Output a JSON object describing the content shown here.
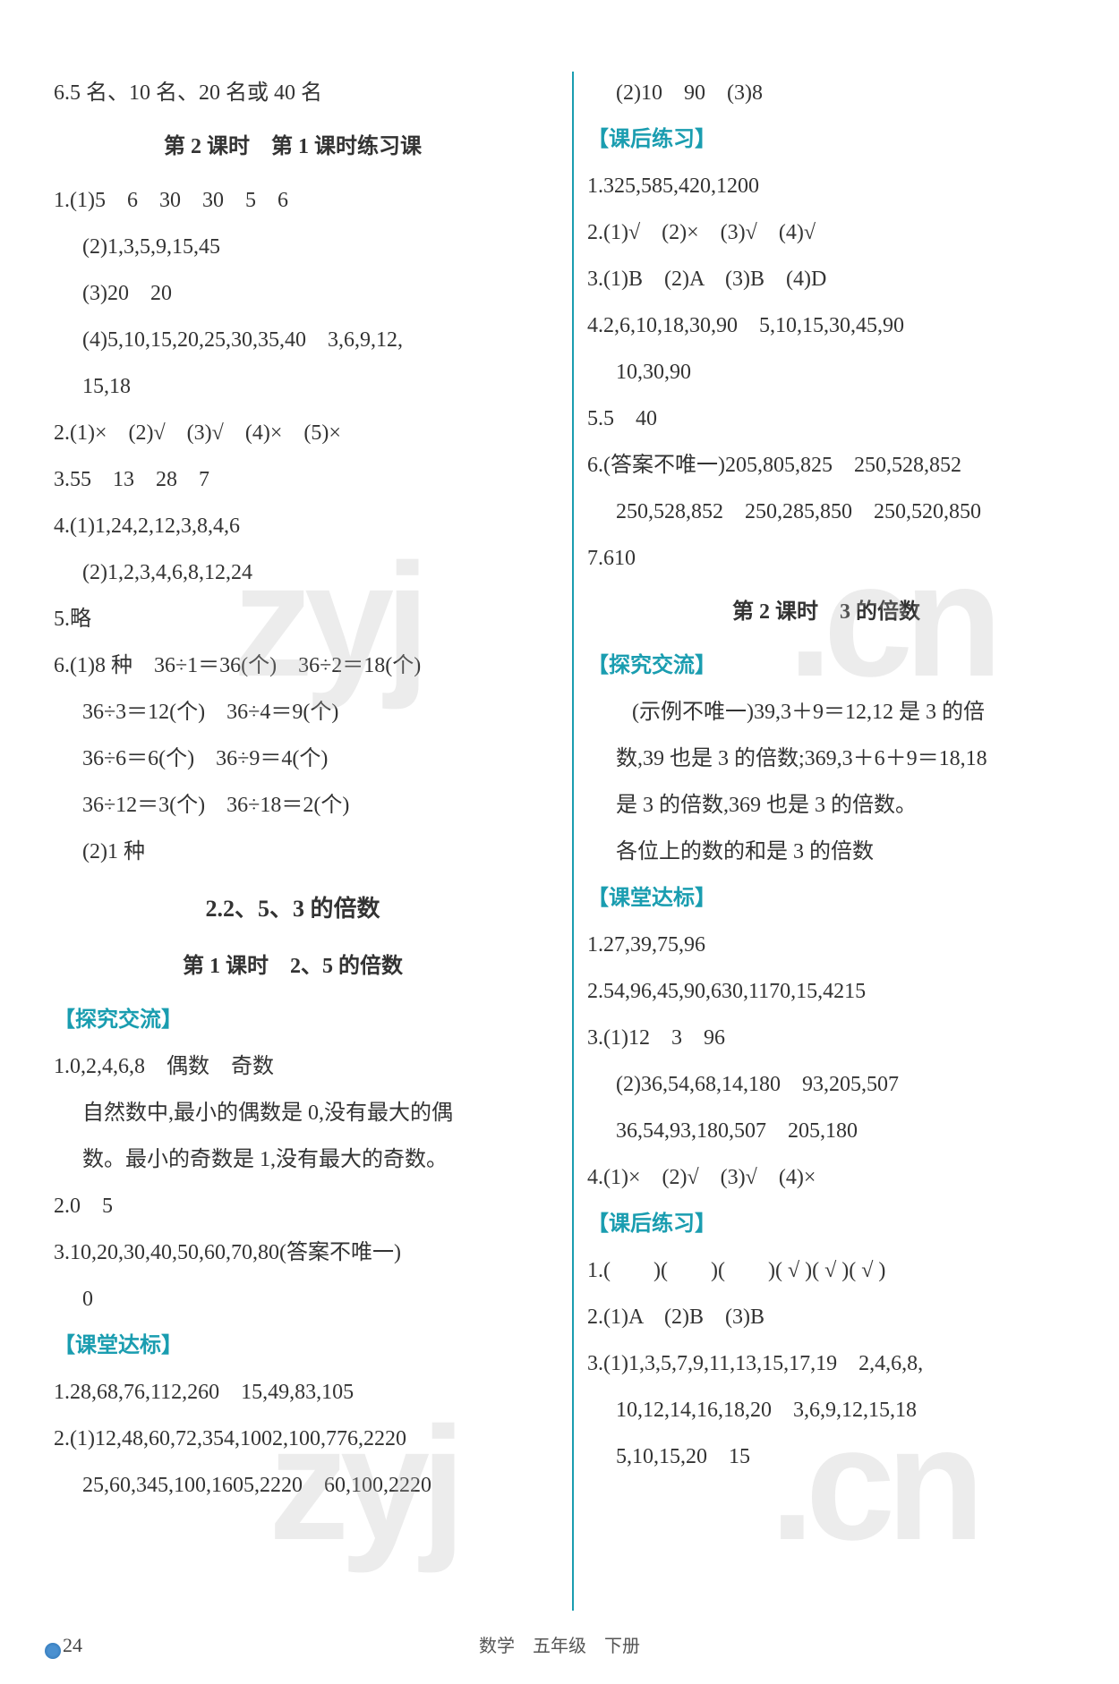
{
  "page": {
    "footer": "数学　五年级　下册",
    "page_number": "24",
    "background_color": "#ffffff",
    "text_color": "#333333",
    "accent_color": "#1a9db0",
    "body_fontsize": 24,
    "line_height": 2.0,
    "watermark_color": "rgba(180,180,180,0.25)",
    "watermark_text_1": "zyj",
    "watermark_text_2": ".cn",
    "watermark_text_3": "zyj",
    "watermark_text_4": ".cn"
  },
  "left": {
    "l01": "6.5 名、10 名、20 名或 40 名",
    "h01": "第 2 课时　第 1 课时练习课",
    "l02": "1.(1)5　6　30　30　5　6",
    "l03": "(2)1,3,5,9,15,45",
    "l04": "(3)20　20",
    "l05": "(4)5,10,15,20,25,30,35,40　3,6,9,12,",
    "l06": "15,18",
    "l07": "2.(1)×　(2)√　(3)√　(4)×　(5)×",
    "l08": "3.55　13　28　7",
    "l09": "4.(1)1,24,2,12,3,8,4,6",
    "l10": "(2)1,2,3,4,6,8,12,24",
    "l11": "5.略",
    "l12": "6.(1)8 种　36÷1＝36(个)　36÷2＝18(个)",
    "l13": "36÷3＝12(个)　36÷4＝9(个)",
    "l14": "36÷6＝6(个)　36÷9＝4(个)",
    "l15": "36÷12＝3(个)　36÷18＝2(个)",
    "l16": "(2)1 种",
    "h02": "2.2、5、3 的倍数",
    "h03": "第 1 课时　2、5 的倍数",
    "bh1": "【探究交流】",
    "l17": "1.0,2,4,6,8　偶数　奇数",
    "l18": "自然数中,最小的偶数是 0,没有最大的偶",
    "l19": "数。最小的奇数是 1,没有最大的奇数。",
    "l20": "2.0　5",
    "l21": "3.10,20,30,40,50,60,70,80(答案不唯一)",
    "l22": "0",
    "bh2": "【课堂达标】",
    "l23": "1.28,68,76,112,260　15,49,83,105",
    "l24": "2.(1)12,48,60,72,354,1002,100,776,2220",
    "l25": "25,60,345,100,1605,2220　60,100,2220"
  },
  "right": {
    "l01": "(2)10　90　(3)8",
    "bh1": "【课后练习】",
    "l02": "1.325,585,420,1200",
    "l03": "2.(1)√　(2)×　(3)√　(4)√",
    "l04": "3.(1)B　(2)A　(3)B　(4)D",
    "l05": "4.2,6,10,18,30,90　5,10,15,30,45,90",
    "l06": "10,30,90",
    "l07": "5.5　40",
    "l08": "6.(答案不唯一)205,805,825　250,528,852",
    "l09": "250,528,852　250,285,850　250,520,850",
    "l10": "7.610",
    "h01": "第 2 课时　3 的倍数",
    "bh2": "【探究交流】",
    "l11": "(示例不唯一)39,3＋9＝12,12 是 3 的倍",
    "l12": "数,39 也是 3 的倍数;369,3＋6＋9＝18,18",
    "l13": "是 3 的倍数,369 也是 3 的倍数。",
    "l14": "各位上的数的和是 3 的倍数",
    "bh3": "【课堂达标】",
    "l15": "1.27,39,75,96",
    "l16": "2.54,96,45,90,630,1170,15,4215",
    "l17": "3.(1)12　3　96",
    "l18": "(2)36,54,68,14,180　93,205,507",
    "l19": "36,54,93,180,507　205,180",
    "l20": "4.(1)×　(2)√　(3)√　(4)×",
    "bh4": "【课后练习】",
    "l21": "1.(　　)(　　)(　　)( √ )( √ )( √ )",
    "l22": "2.(1)A　(2)B　(3)B",
    "l23": "3.(1)1,3,5,7,9,11,13,15,17,19　2,4,6,8,",
    "l24": "10,12,14,16,18,20　3,6,9,12,15,18",
    "l25": "5,10,15,20　15"
  }
}
